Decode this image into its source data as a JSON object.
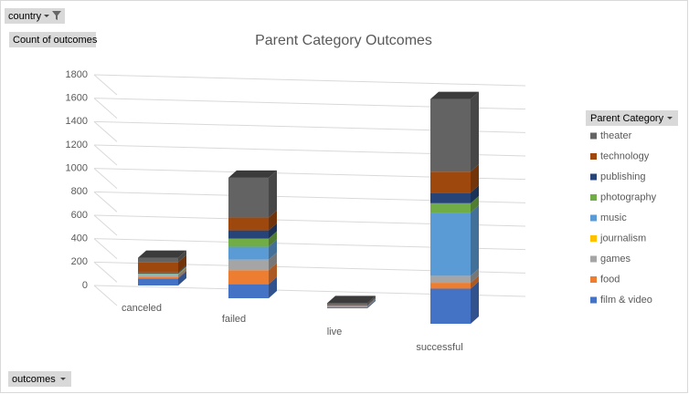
{
  "chart_data": {
    "type": "bar3d",
    "stacked": true,
    "title": "Parent Category Outcomes",
    "filter_field": "country",
    "value_field": "Count of outcomes",
    "axis_field": "outcomes",
    "legend_title": "Parent Category",
    "legend_position": "right",
    "grid": true,
    "categories": [
      "canceled",
      "failed",
      "live",
      "successful"
    ],
    "ylim": [
      0,
      1800
    ],
    "yticks": [
      0,
      200,
      400,
      600,
      800,
      1000,
      1200,
      1400,
      1600,
      1800
    ],
    "series": [
      {
        "name": "film & video",
        "color": "#4472c4",
        "values": [
          60,
          120,
          10,
          300
        ]
      },
      {
        "name": "food",
        "color": "#ed7d31",
        "values": [
          11,
          120,
          2,
          50
        ]
      },
      {
        "name": "games",
        "color": "#a5a5a5",
        "values": [
          19,
          90,
          2,
          60
        ]
      },
      {
        "name": "journalism",
        "color": "#ffc000",
        "values": [
          4,
          0,
          0,
          0
        ]
      },
      {
        "name": "music",
        "color": "#5b9bd5",
        "values": [
          4,
          110,
          5,
          540
        ]
      },
      {
        "name": "photography",
        "color": "#70ad47",
        "values": [
          5,
          70,
          2,
          80
        ]
      },
      {
        "name": "publishing",
        "color": "#264478",
        "values": [
          8,
          70,
          5,
          90
        ]
      },
      {
        "name": "technology",
        "color": "#9e480e",
        "values": [
          89,
          110,
          3,
          180
        ]
      },
      {
        "name": "theater",
        "color": "#636363",
        "values": [
          37,
          340,
          15,
          620
        ]
      }
    ]
  }
}
